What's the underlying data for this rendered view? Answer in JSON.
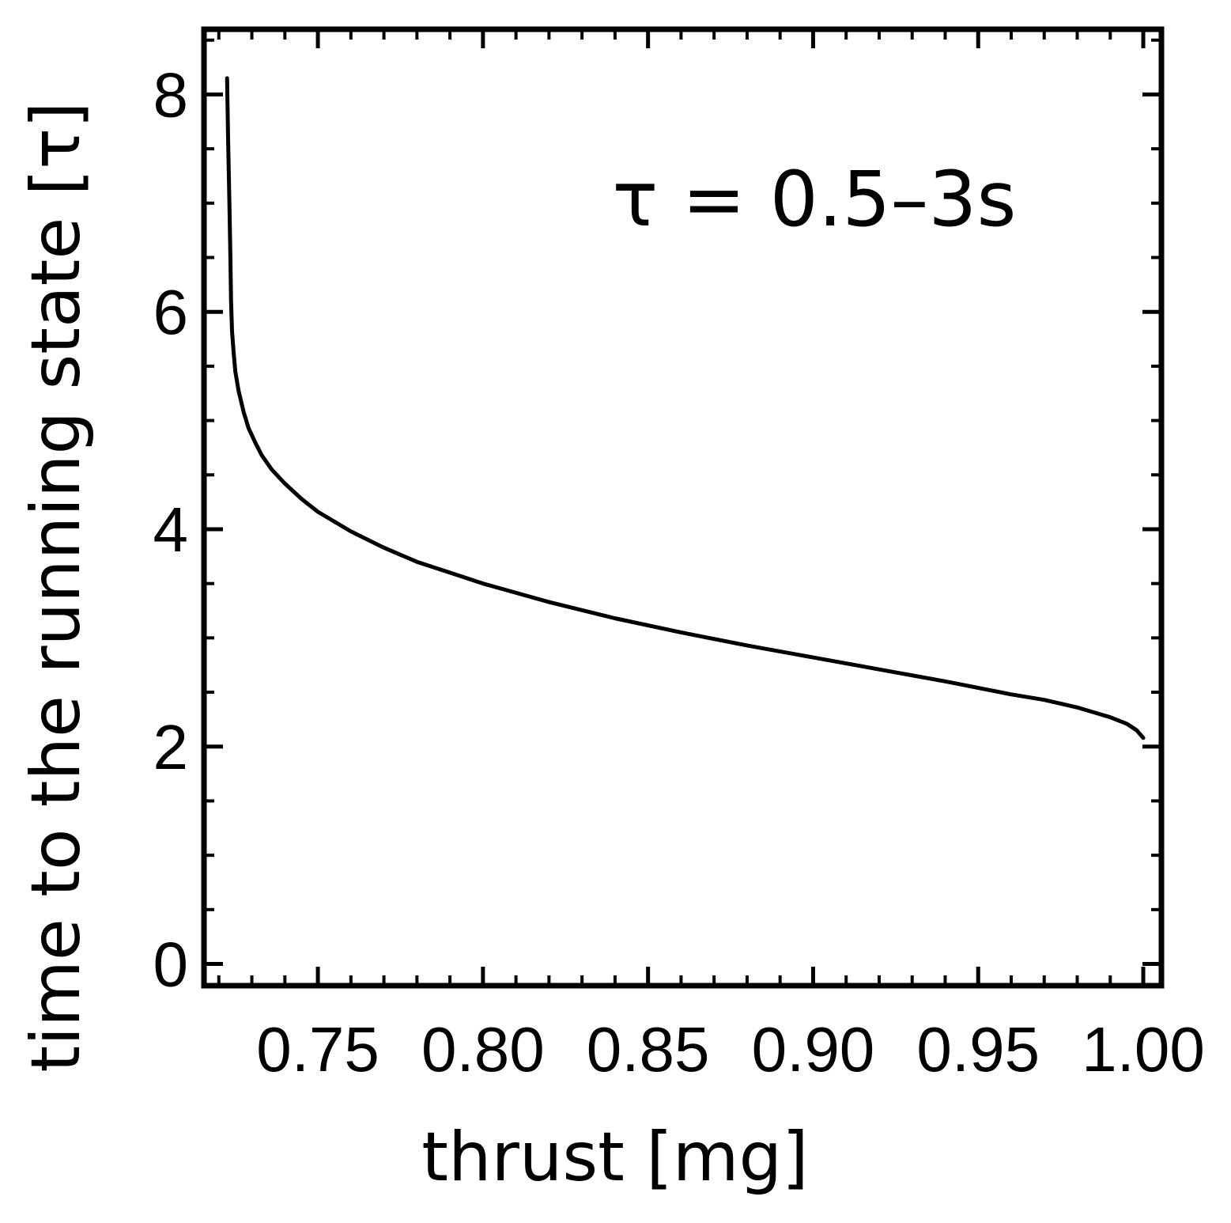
{
  "chart_data": {
    "type": "line",
    "xlabel": "thrust [mg]",
    "ylabel": "time to the running state [τ]",
    "annotation": "τ = 0.5–3s",
    "xlim": [
      0.7155,
      1.0055
    ],
    "ylim": [
      -0.2,
      8.6
    ],
    "x_ticks": [
      0.75,
      0.8,
      0.85,
      0.9,
      0.95,
      1.0
    ],
    "x_tick_labels": [
      "0.75",
      "0.80",
      "0.85",
      "0.90",
      "0.95",
      "1.00"
    ],
    "y_ticks": [
      0,
      2,
      4,
      6,
      8
    ],
    "y_tick_labels": [
      "0",
      "2",
      "4",
      "6",
      "8"
    ],
    "grid": false,
    "series": [
      {
        "color": "#000000",
        "x": [
          0.7225,
          0.7228,
          0.7232,
          0.7235,
          0.7237,
          0.724,
          0.7245,
          0.725,
          0.726,
          0.7275,
          0.729,
          0.731,
          0.733,
          0.736,
          0.74,
          0.745,
          0.75,
          0.76,
          0.77,
          0.78,
          0.79,
          0.8,
          0.82,
          0.84,
          0.86,
          0.88,
          0.9,
          0.92,
          0.94,
          0.96,
          0.97,
          0.98,
          0.99,
          0.995,
          0.998,
          1.0
        ],
        "y": [
          8.15,
          7.6,
          7.0,
          6.5,
          6.1,
          5.82,
          5.62,
          5.45,
          5.27,
          5.08,
          4.93,
          4.8,
          4.68,
          4.55,
          4.42,
          4.28,
          4.16,
          3.98,
          3.83,
          3.7,
          3.6,
          3.5,
          3.33,
          3.18,
          3.05,
          2.93,
          2.82,
          2.71,
          2.6,
          2.48,
          2.43,
          2.36,
          2.27,
          2.21,
          2.15,
          2.08
        ]
      }
    ]
  }
}
